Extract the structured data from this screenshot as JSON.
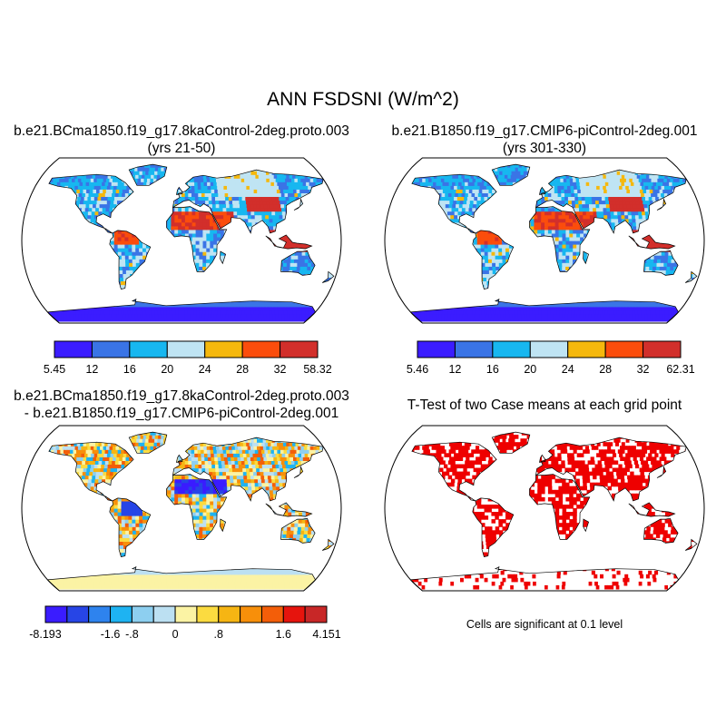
{
  "title": "ANN FSDSNI (W/m^2)",
  "colors": {
    "case_scale": [
      "#3b1cff",
      "#3a74e6",
      "#17b7f0",
      "#bfe4f3",
      "#f5b80d",
      "#fb4d0c",
      "#d22f2b"
    ],
    "diff_scale": [
      "#3a1cff",
      "#2745e6",
      "#2e83ee",
      "#1eb3f2",
      "#8dcff0",
      "#bce0f2",
      "#fbf3a4",
      "#fbdb40",
      "#f6b513",
      "#f78f0a",
      "#f35e09",
      "#e6140d",
      "#c82727"
    ],
    "ttest": "#ee0000",
    "coast": "#000000",
    "missing": "#ffffff"
  },
  "panels": [
    {
      "id": "case1",
      "title_line1": "b.e21.BCma1850.f19_g17.8kaControl-2deg.proto.003",
      "title_line2": "(yrs 21-50)",
      "colorbar_labels": [
        "5.45",
        "12",
        "16",
        "20",
        "24",
        "28",
        "32",
        "58.32"
      ]
    },
    {
      "id": "case2",
      "title_line1": "b.e21.B1850.f19_g17.CMIP6-piControl-2deg.001",
      "title_line2": "(yrs 301-330)",
      "colorbar_labels": [
        "5.46",
        "12",
        "16",
        "20",
        "24",
        "28",
        "32",
        "62.31"
      ]
    },
    {
      "id": "diff",
      "title_line1": "b.e21.BCma1850.f19_g17.8kaControl-2deg.proto.003",
      "title_line2": "- b.e21.B1850.f19_g17.CMIP6-piControl-2deg.001",
      "colorbar_labels": [
        "-8.193",
        "-1.6",
        "-.8",
        "0",
        ".8",
        "1.6",
        "4.151"
      ]
    },
    {
      "id": "ttest",
      "title_line1": "T-Test of two Case means at each grid point",
      "note": "Cells are significant at 0.1 level"
    }
  ]
}
